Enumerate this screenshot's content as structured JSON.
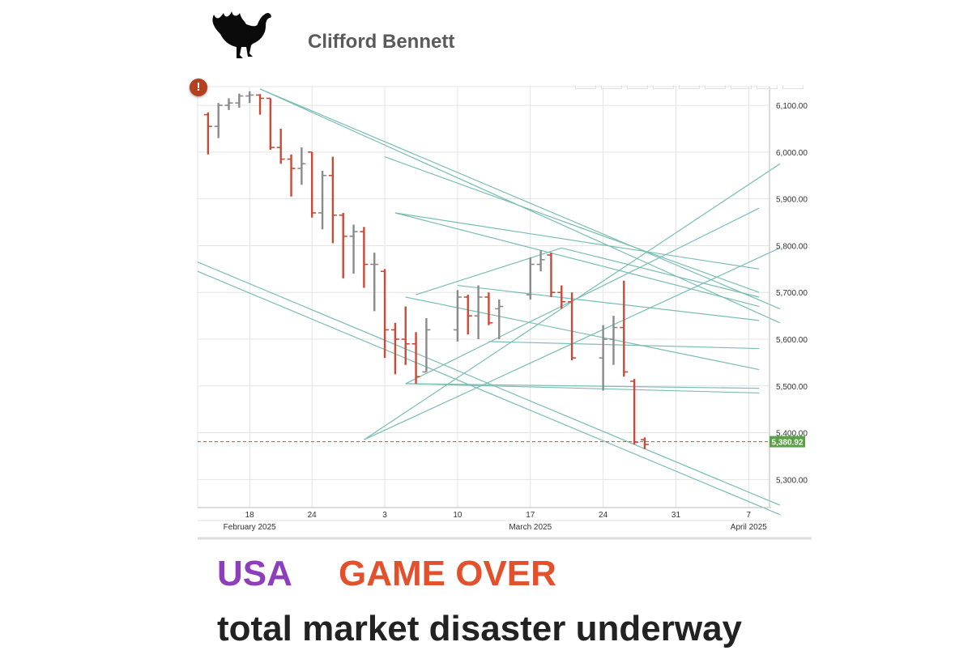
{
  "header": {
    "author": "Clifford Bennett",
    "logo_icon": "turkey-silhouette-icon"
  },
  "warning_icon": "exclamation-icon",
  "headline": {
    "word1": "USA",
    "word2": "GAME OVER",
    "line2": "total market disaster underway"
  },
  "colors": {
    "up": "#8a8a8a",
    "down": "#c94a37",
    "trendline": "#79bdb4",
    "price_tag": "#5aa247",
    "usa": "#8e3ebd",
    "game_over": "#e3502c"
  },
  "chart_data": {
    "type": "ohlc",
    "title": "",
    "ylim": [
      5240,
      6140
    ],
    "y_ticks": [
      {
        "v": 6100,
        "label": "6,100.00"
      },
      {
        "v": 6000,
        "label": "6,000.00"
      },
      {
        "v": 5900,
        "label": "5,900.00"
      },
      {
        "v": 5800,
        "label": "5,800.00"
      },
      {
        "v": 5700,
        "label": "5,700.00"
      },
      {
        "v": 5600,
        "label": "5,600.00"
      },
      {
        "v": 5500,
        "label": "5,500.00"
      },
      {
        "v": 5400,
        "label": "5,400.00"
      },
      {
        "v": 5300,
        "label": "5,300.00"
      }
    ],
    "x_range": [
      "2025-02-13",
      "2025-04-09"
    ],
    "x_day_labels": [
      {
        "date": "2025-02-18",
        "label": "18"
      },
      {
        "date": "2025-02-24",
        "label": "24"
      },
      {
        "date": "2025-03-03",
        "label": "3"
      },
      {
        "date": "2025-03-10",
        "label": "10"
      },
      {
        "date": "2025-03-17",
        "label": "17"
      },
      {
        "date": "2025-03-24",
        "label": "24"
      },
      {
        "date": "2025-03-31",
        "label": "31"
      },
      {
        "date": "2025-04-07",
        "label": "7"
      }
    ],
    "x_month_labels": [
      {
        "date": "2025-02-18",
        "label": "February 2025"
      },
      {
        "date": "2025-03-17",
        "label": "March 2025"
      },
      {
        "date": "2025-04-07",
        "label": "April 2025"
      }
    ],
    "bars": [
      {
        "d": "2025-02-14",
        "o": 6080,
        "h": 6085,
        "l": 5995,
        "c": 6055
      },
      {
        "d": "2025-02-15",
        "o": 6055,
        "h": 6105,
        "l": 6030,
        "c": 6100
      },
      {
        "d": "2025-02-16",
        "o": 6100,
        "h": 6115,
        "l": 6090,
        "c": 6105
      },
      {
        "d": "2025-02-17",
        "o": 6105,
        "h": 6125,
        "l": 6095,
        "c": 6120
      },
      {
        "d": "2025-02-18",
        "o": 6120,
        "h": 6130,
        "l": 6105,
        "c": 6122
      },
      {
        "d": "2025-02-19",
        "o": 6122,
        "h": 6124,
        "l": 6080,
        "c": 6115
      },
      {
        "d": "2025-02-20",
        "o": 6115,
        "h": 6115,
        "l": 6005,
        "c": 6010
      },
      {
        "d": "2025-02-21",
        "o": 6010,
        "h": 6050,
        "l": 5975,
        "c": 5985
      },
      {
        "d": "2025-02-22",
        "o": 5985,
        "h": 5995,
        "l": 5905,
        "c": 5965
      },
      {
        "d": "2025-02-23",
        "o": 5965,
        "h": 6010,
        "l": 5930,
        "c": 5975
      },
      {
        "d": "2025-02-24",
        "o": 6000,
        "h": 6000,
        "l": 5860,
        "c": 5870
      },
      {
        "d": "2025-02-25",
        "o": 5870,
        "h": 5960,
        "l": 5835,
        "c": 5950
      },
      {
        "d": "2025-02-26",
        "o": 5950,
        "h": 5990,
        "l": 5805,
        "c": 5865
      },
      {
        "d": "2025-02-27",
        "o": 5865,
        "h": 5870,
        "l": 5730,
        "c": 5820
      },
      {
        "d": "2025-02-28",
        "o": 5820,
        "h": 5845,
        "l": 5740,
        "c": 5830
      },
      {
        "d": "2025-03-01",
        "o": 5830,
        "h": 5840,
        "l": 5710,
        "c": 5760
      },
      {
        "d": "2025-03-02",
        "o": 5760,
        "h": 5785,
        "l": 5660,
        "c": 5760
      },
      {
        "d": "2025-03-03",
        "o": 5745,
        "h": 5750,
        "l": 5560,
        "c": 5620
      },
      {
        "d": "2025-03-04",
        "o": 5620,
        "h": 5635,
        "l": 5525,
        "c": 5600
      },
      {
        "d": "2025-03-05",
        "o": 5600,
        "h": 5670,
        "l": 5545,
        "c": 5590
      },
      {
        "d": "2025-03-06",
        "o": 5590,
        "h": 5615,
        "l": 5505,
        "c": 5520
      },
      {
        "d": "2025-03-07",
        "o": 5530,
        "h": 5645,
        "l": 5530,
        "c": 5620
      },
      {
        "d": "2025-03-10",
        "o": 5620,
        "h": 5705,
        "l": 5595,
        "c": 5690
      },
      {
        "d": "2025-03-11",
        "o": 5690,
        "h": 5695,
        "l": 5610,
        "c": 5650
      },
      {
        "d": "2025-03-12",
        "o": 5650,
        "h": 5715,
        "l": 5600,
        "c": 5690
      },
      {
        "d": "2025-03-13",
        "o": 5690,
        "h": 5700,
        "l": 5630,
        "c": 5635
      },
      {
        "d": "2025-03-14",
        "o": 5665,
        "h": 5685,
        "l": 5600,
        "c": 5670
      },
      {
        "d": "2025-03-17",
        "o": 5695,
        "h": 5775,
        "l": 5685,
        "c": 5760
      },
      {
        "d": "2025-03-18",
        "o": 5760,
        "h": 5790,
        "l": 5745,
        "c": 5770
      },
      {
        "d": "2025-03-19",
        "o": 5780,
        "h": 5785,
        "l": 5690,
        "c": 5700
      },
      {
        "d": "2025-03-20",
        "o": 5700,
        "h": 5715,
        "l": 5665,
        "c": 5680
      },
      {
        "d": "2025-03-21",
        "o": 5680,
        "h": 5700,
        "l": 5555,
        "c": 5560
      },
      {
        "d": "2025-03-24",
        "o": 5560,
        "h": 5630,
        "l": 5490,
        "c": 5600
      },
      {
        "d": "2025-03-25",
        "o": 5600,
        "h": 5650,
        "l": 5545,
        "c": 5625
      },
      {
        "d": "2025-03-26",
        "o": 5625,
        "h": 5725,
        "l": 5520,
        "c": 5530
      },
      {
        "d": "2025-03-27",
        "o": 5510,
        "h": 5515,
        "l": 5375,
        "c": 5380
      },
      {
        "d": "2025-03-28",
        "o": 5385,
        "h": 5390,
        "l": 5365,
        "c": 5375
      }
    ],
    "last_price": 5380.92,
    "last_price_label": "5,380.92",
    "trendlines": [
      [
        "2025-02-19",
        6135,
        "2025-04-10",
        5665
      ],
      [
        "2025-02-19",
        6135,
        "2025-04-10",
        5635
      ],
      [
        "2025-03-03",
        5990,
        "2025-04-08",
        5700
      ],
      [
        "2025-03-04",
        5870,
        "2025-04-08",
        5750
      ],
      [
        "2025-03-04",
        5870,
        "2025-04-08",
        5670
      ],
      [
        "2025-03-10",
        5715,
        "2025-04-08",
        5640
      ],
      [
        "2025-03-05",
        5690,
        "2025-04-08",
        5535
      ],
      [
        "2025-03-13",
        5595,
        "2025-04-08",
        5580
      ],
      [
        "2025-03-05",
        5505,
        "2025-04-08",
        5485
      ],
      [
        "2025-03-05",
        5505,
        "2025-04-08",
        5495
      ],
      [
        "2025-03-01",
        5385,
        "2025-04-10",
        5975
      ],
      [
        "2025-03-01",
        5385,
        "2025-04-10",
        5795
      ],
      [
        "2025-03-05",
        5505,
        "2025-04-08",
        5880
      ],
      [
        "2025-02-13",
        5765,
        "2025-04-10",
        5245
      ],
      [
        "2025-02-13",
        5745,
        "2025-04-10",
        5225
      ],
      [
        "2025-03-06",
        5695,
        "2025-03-20",
        5795
      ],
      [
        "2025-03-20",
        5795,
        "2025-04-08",
        5690
      ]
    ]
  }
}
